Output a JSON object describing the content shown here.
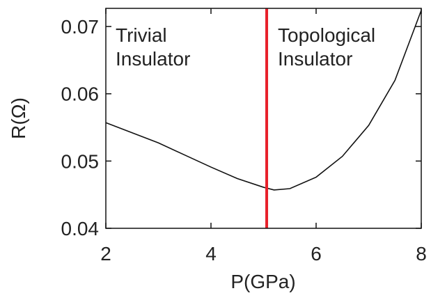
{
  "chart_data": {
    "type": "line",
    "xlabel": "P(GPa)",
    "ylabel": "R(Ω)",
    "x": [
      2,
      2.5,
      3,
      3.5,
      4,
      4.5,
      5,
      5.2,
      5.5,
      6,
      6.5,
      7,
      7.5,
      8
    ],
    "series": [
      {
        "color": "#111111",
        "values": [
          0.0557,
          0.0542,
          0.0527,
          0.0509,
          0.0491,
          0.0474,
          0.0461,
          0.0457,
          0.0459,
          0.0476,
          0.0507,
          0.0553,
          0.062,
          0.0724
        ]
      }
    ],
    "transition_x": 5.06,
    "transition_color": "#e8202a",
    "annotations": [
      [
        "Trivial",
        "Insulator"
      ],
      [
        "Topological",
        "Insulator"
      ]
    ],
    "xlim": [
      2,
      8
    ],
    "ylim": [
      0.04,
      0.0727
    ],
    "xticks": [
      2,
      4,
      6,
      8
    ],
    "yticks": [
      0.04,
      0.05,
      0.06,
      0.07
    ]
  }
}
